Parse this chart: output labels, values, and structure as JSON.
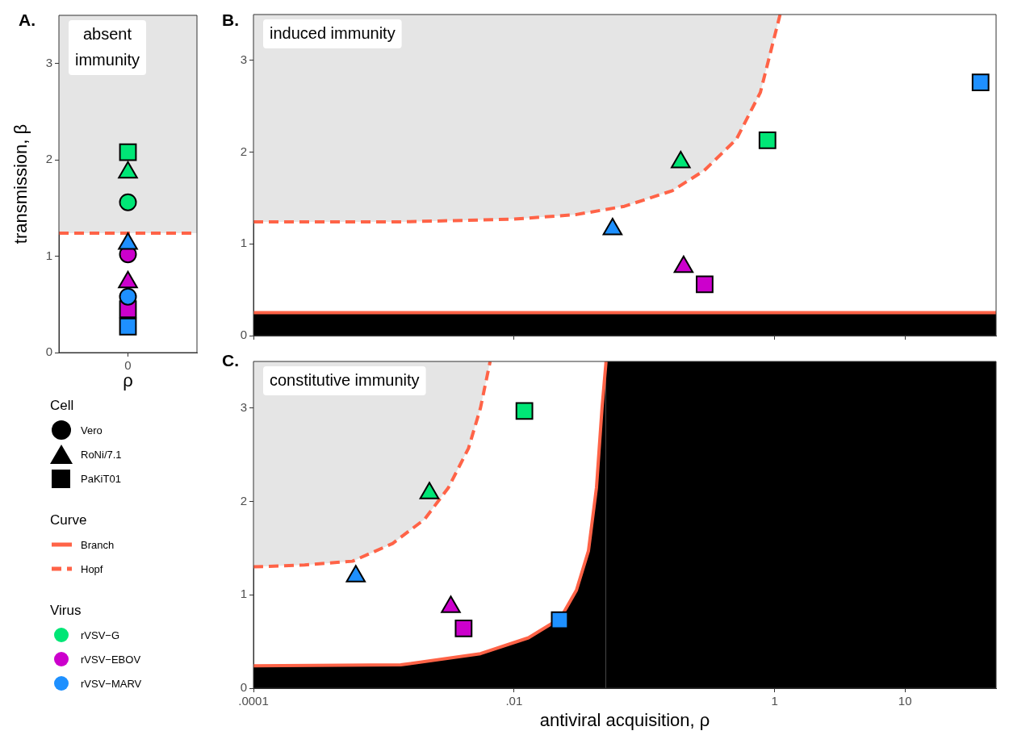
{
  "chart_data": [
    {
      "type": "scatter",
      "title": "A.",
      "categories": [
        "0"
      ],
      "xlabel": "ρ",
      "ylabel": "transmission, β",
      "ylim": [
        0,
        3.5
      ],
      "yticks": [
        0,
        1,
        2,
        3
      ],
      "annotations": [
        "absent immunity"
      ],
      "bands": [
        {
          "axis": "y",
          "from": 1.24,
          "to": 3.5,
          "color": "#e5e5e5"
        }
      ],
      "ref_lines": [
        {
          "axis": "y",
          "value": 1.24,
          "color": "#ff6347",
          "line_style": "dashed"
        }
      ],
      "series": [
        {
          "type": "scatter",
          "marker": "circle",
          "color": "#00e676",
          "values": [
            1.56
          ]
        },
        {
          "type": "scatter",
          "marker": "triangle",
          "color": "#00e676",
          "values": [
            1.87
          ]
        },
        {
          "type": "scatter",
          "marker": "square",
          "color": "#00e676",
          "values": [
            2.08
          ]
        },
        {
          "type": "scatter",
          "marker": "circle",
          "color": "#cc00cc",
          "values": [
            1.02
          ]
        },
        {
          "type": "scatter",
          "marker": "triangle",
          "color": "#cc00cc",
          "values": [
            0.73
          ]
        },
        {
          "type": "scatter",
          "marker": "square",
          "color": "#cc00cc",
          "values": [
            0.45
          ]
        },
        {
          "type": "scatter",
          "marker": "circle",
          "color": "#1e90ff",
          "values": [
            0.58
          ]
        },
        {
          "type": "scatter",
          "marker": "triangle",
          "color": "#1e90ff",
          "values": [
            1.13
          ]
        },
        {
          "type": "scatter",
          "marker": "square",
          "color": "#1e90ff",
          "values": [
            0.27
          ]
        }
      ]
    },
    {
      "type": "scatter",
      "title": "B.",
      "log": "x",
      "bands": [
        {
          "axis": "y",
          "from": 0,
          "to": 0.25,
          "color": "#000000"
        }
      ],
      "xlim": [
        0.0001,
        50
      ],
      "xticks": [
        {
          "value": 0.0001,
          "label": null
        },
        {
          "value": 0.01,
          "label": null
        },
        {
          "value": 1,
          "label": null
        },
        {
          "value": 10,
          "label": null
        }
      ],
      "ylim": [
        0,
        3.5
      ],
      "yticks": [
        0,
        1,
        2,
        3
      ],
      "tick_labels": "y",
      "annotations": [
        "induced immunity"
      ],
      "series": [
        {
          "type": "line",
          "color": "#ff6347",
          "line_style": "solid",
          "x": [
            0.0001,
            50
          ],
          "values": [
            0.25,
            0.25
          ]
        },
        {
          "type": "line",
          "color": "#ff6347",
          "line_style": "dashed",
          "x": [
            0.0001,
            0.00135,
            0.01,
            0.0301,
            0.0703,
            0.164,
            0.288,
            0.508,
            0.776,
            1.1
          ],
          "values": [
            1.24,
            1.24,
            1.27,
            1.32,
            1.41,
            1.58,
            1.8,
            2.14,
            2.65,
            3.5
          ]
        },
        {
          "type": "scatter",
          "marker": "triangle",
          "color": "#00e676",
          "x": [
            0.19
          ],
          "values": [
            1.89
          ]
        },
        {
          "type": "scatter",
          "marker": "square",
          "color": "#00e676",
          "x": [
            0.88
          ],
          "values": [
            2.13
          ]
        },
        {
          "type": "scatter",
          "marker": "triangle",
          "color": "#cc00cc",
          "x": [
            0.2
          ],
          "values": [
            0.75
          ]
        },
        {
          "type": "scatter",
          "marker": "square",
          "color": "#cc00cc",
          "x": [
            0.29
          ],
          "values": [
            0.56
          ]
        },
        {
          "type": "scatter",
          "marker": "triangle",
          "color": "#1e90ff",
          "x": [
            0.057
          ],
          "values": [
            1.16
          ]
        },
        {
          "type": "scatter",
          "marker": "square",
          "color": "#1e90ff",
          "x": [
            38
          ],
          "values": [
            2.76
          ]
        }
      ]
    },
    {
      "type": "scatter",
      "title": "C.",
      "log": "x",
      "bands": [
        {
          "axis": "x",
          "from": 0.0508,
          "to": 50,
          "color": "#000000"
        }
      ],
      "xlabel": "antiviral acquisition, ρ",
      "xlim": [
        0.0001,
        50
      ],
      "xticks": [
        {
          "value": 0.0001,
          "label": ".0001"
        },
        {
          "value": 0.01,
          "label": ".01"
        },
        1,
        10
      ],
      "ylim": [
        0,
        3.5
      ],
      "yticks": [
        0,
        1,
        2,
        3
      ],
      "annotations": [
        "constitutive immunity"
      ],
      "series": [
        {
          "type": "area",
          "color": "#000000",
          "x": [
            0.0001,
            0.00135,
            0.00552,
            0.0129,
            0.0227,
            0.0301,
            0.0372,
            0.0429,
            0.0473,
            0.0508
          ],
          "values": [
            0.24,
            0.25,
            0.37,
            0.54,
            0.75,
            1.05,
            1.47,
            2.15,
            3.0,
            3.5
          ]
        },
        {
          "type": "line",
          "color": "#ff6347",
          "line_style": "dashed",
          "x": [
            0.0001,
            0.000247,
            0.000575,
            0.00117,
            0.00206,
            0.00314,
            0.00447,
            0.00552,
            0.00655
          ],
          "values": [
            1.3,
            1.32,
            1.36,
            1.55,
            1.81,
            2.15,
            2.57,
            3.0,
            3.5
          ]
        },
        {
          "type": "scatter",
          "marker": "triangle",
          "color": "#00e676",
          "x": [
            0.00224
          ],
          "values": [
            2.09
          ]
        },
        {
          "type": "scatter",
          "marker": "square",
          "color": "#00e676",
          "x": [
            0.012
          ],
          "values": [
            2.97
          ]
        },
        {
          "type": "scatter",
          "marker": "triangle",
          "color": "#cc00cc",
          "x": [
            0.00327
          ],
          "values": [
            0.87
          ]
        },
        {
          "type": "scatter",
          "marker": "square",
          "color": "#cc00cc",
          "x": [
            0.0041
          ],
          "values": [
            0.64
          ]
        },
        {
          "type": "scatter",
          "marker": "triangle",
          "color": "#1e90ff",
          "x": [
            0.00061
          ],
          "values": [
            1.2
          ]
        },
        {
          "type": "scatter",
          "marker": "square",
          "color": "#1e90ff",
          "x": [
            0.0224
          ],
          "values": [
            0.73
          ]
        }
      ]
    },
    {
      "type": "other",
      "annotations": [
        "Cell",
        "Vero",
        "RoNi/7.1",
        "PaKiT01",
        "Curve",
        "Branch",
        "Hopf",
        "Virus",
        "rVSV−G",
        "rVSV−EBOV",
        "rVSV−MARV"
      ]
    }
  ]
}
